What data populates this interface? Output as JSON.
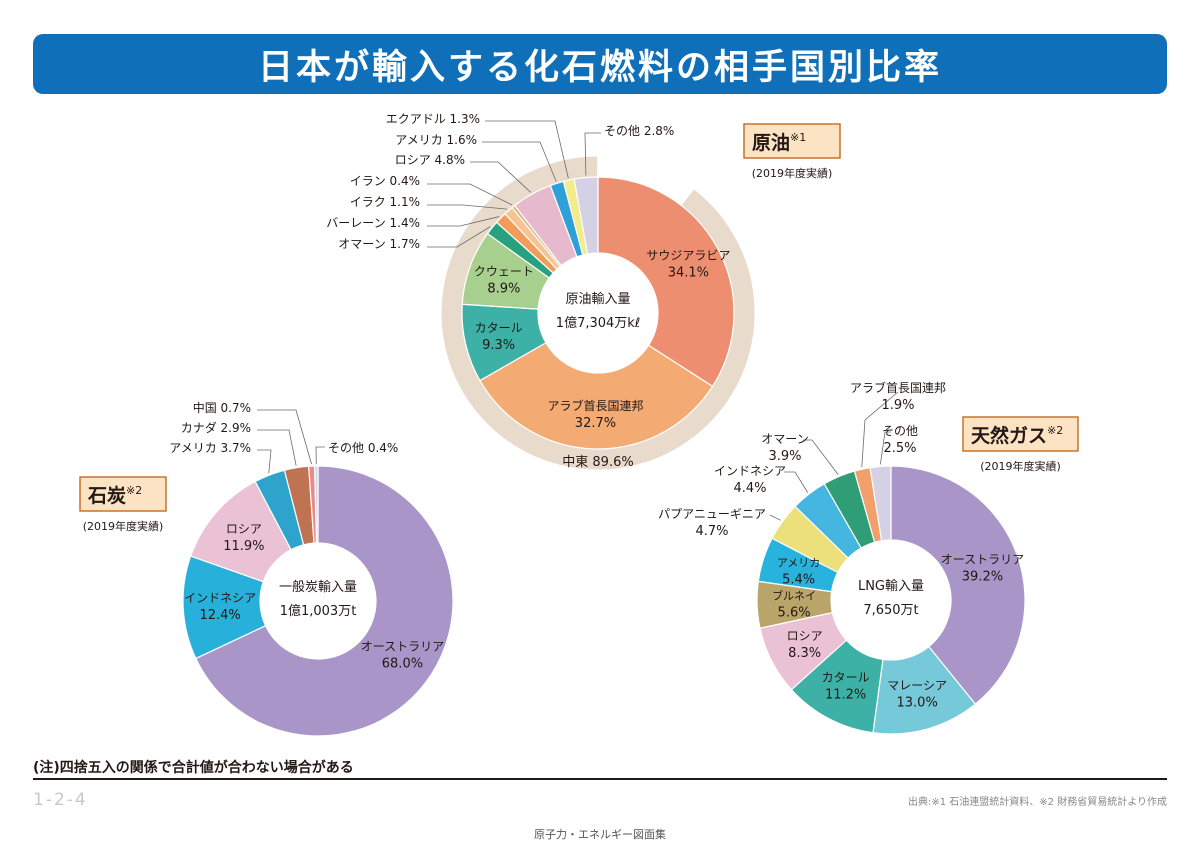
{
  "header": {
    "title": "日本が輸入する化石燃料の相手国別比率"
  },
  "footer": {
    "note": "(注)四捨五入の関係で合計値が合わない場合がある",
    "page_number": "1-2-4",
    "source": "出典:※1 石油連盟統計資料、※2 財務省貿易統計より作成",
    "book_title": "原子力・エネルギー図面集"
  },
  "colors": {
    "banner": "#0f6fb8",
    "label_box": "#fbe3c4",
    "label_box_border": "#c36a1e",
    "leader": "#6b6b6b",
    "ring_outer": "#e8dbcc"
  },
  "chart_data": [
    {
      "type": "donut",
      "title": "原油",
      "title_note": "※1",
      "subtitle": "(2019年度実績)",
      "center_label": "原油輸入量",
      "center_value": "1億7,304万kℓ",
      "outer_ring": {
        "label": "中東 89.6%",
        "value": 89.6
      },
      "slices": [
        {
          "name": "サウジアラビア",
          "value": 34.1,
          "label": "34.1%",
          "color": "#ee8e70"
        },
        {
          "name": "アラブ首長国連邦",
          "value": 32.7,
          "label": "32.7%",
          "color": "#f3aa73"
        },
        {
          "name": "カタール",
          "value": 9.3,
          "label": "9.3%",
          "color": "#3eb1a6"
        },
        {
          "name": "クウェート",
          "value": 8.9,
          "label": "8.9%",
          "color": "#a7cf8e"
        },
        {
          "name": "オマーン",
          "value": 1.7,
          "label": "1.7%",
          "color": "#27a17e"
        },
        {
          "name": "バーレーン",
          "value": 1.4,
          "label": "1.4%",
          "color": "#f39c59"
        },
        {
          "name": "イラク",
          "value": 1.1,
          "label": "1.1%",
          "color": "#f6c493"
        },
        {
          "name": "イラン",
          "value": 0.4,
          "label": "0.4%",
          "color": "#d9b08a"
        },
        {
          "name": "ロシア",
          "value": 4.8,
          "label": "4.8%",
          "color": "#e7b9cd"
        },
        {
          "name": "アメリカ",
          "value": 1.6,
          "label": "1.6%",
          "color": "#2f9fd7"
        },
        {
          "name": "エクアドル",
          "value": 1.3,
          "label": "1.3%",
          "color": "#f3ec8c"
        },
        {
          "name": "その他",
          "value": 2.8,
          "label": "2.8%",
          "color": "#d4d1e5"
        }
      ]
    },
    {
      "type": "donut",
      "title": "石炭",
      "title_note": "※2",
      "subtitle": "(2019年度実績)",
      "center_label": "一般炭輸入量",
      "center_value": "1億1,003万t",
      "slices": [
        {
          "name": "オーストラリア",
          "value": 68.0,
          "label": "68.0%",
          "color": "#a995c7"
        },
        {
          "name": "インドネシア",
          "value": 12.4,
          "label": "12.4%",
          "color": "#27b0d9"
        },
        {
          "name": "ロシア",
          "value": 11.9,
          "label": "11.9%",
          "color": "#ebc2d5"
        },
        {
          "name": "アメリカ",
          "value": 3.7,
          "label": "3.7%",
          "color": "#2ea3cc"
        },
        {
          "name": "カナダ",
          "value": 2.9,
          "label": "2.9%",
          "color": "#c07352"
        },
        {
          "name": "中国",
          "value": 0.7,
          "label": "0.7%",
          "color": "#e88a8a"
        },
        {
          "name": "その他",
          "value": 0.4,
          "label": "0.4%",
          "color": "#d9d3e6"
        }
      ]
    },
    {
      "type": "donut",
      "title": "天然ガス",
      "title_note": "※2",
      "subtitle": "(2019年度実績)",
      "center_label": "LNG輸入量",
      "center_value": "7,650万t",
      "slices": [
        {
          "name": "オーストラリア",
          "value": 39.2,
          "label": "39.2%",
          "color": "#a995c7"
        },
        {
          "name": "マレーシア",
          "value": 13.0,
          "label": "13.0%",
          "color": "#76c9d8"
        },
        {
          "name": "カタール",
          "value": 11.2,
          "label": "11.2%",
          "color": "#3eb1a6"
        },
        {
          "name": "ロシア",
          "value": 8.3,
          "label": "8.3%",
          "color": "#ebc2d5"
        },
        {
          "name": "ブルネイ",
          "value": 5.6,
          "label": "5.6%",
          "color": "#b9a46a"
        },
        {
          "name": "アメリカ",
          "value": 5.4,
          "label": "5.4%",
          "color": "#28b3dc"
        },
        {
          "name": "パプアニューギニア",
          "value": 4.7,
          "label": "4.7%",
          "color": "#ece07a"
        },
        {
          "name": "インドネシア",
          "value": 4.4,
          "label": "4.4%",
          "color": "#45b6e0"
        },
        {
          "name": "オマーン",
          "value": 3.9,
          "label": "3.9%",
          "color": "#2f9e77"
        },
        {
          "name": "アラブ首長国連邦",
          "value": 1.9,
          "label": "1.9%",
          "color": "#f2a06b"
        },
        {
          "name": "その他",
          "value": 2.5,
          "label": "2.5%",
          "color": "#d4d1e5"
        }
      ]
    }
  ]
}
